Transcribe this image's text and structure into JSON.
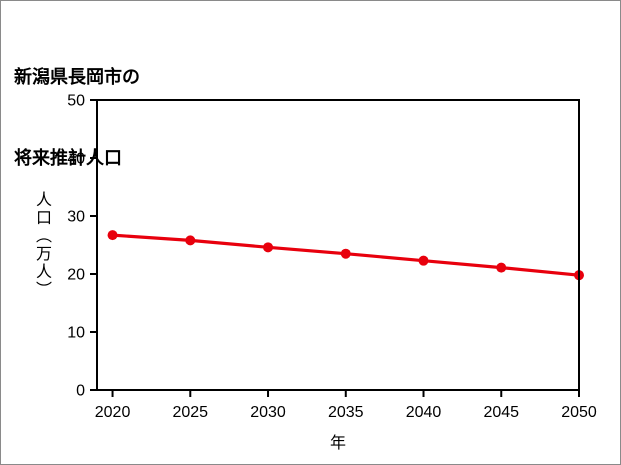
{
  "title": {
    "line1": "新潟県長岡市の",
    "line2": "将来推計人口"
  },
  "chart_data": {
    "type": "line",
    "title": "新潟県長岡市の将来推計人口",
    "xlabel": "年",
    "ylabel": "人口（万人）",
    "x": [
      2020,
      2025,
      2030,
      2035,
      2040,
      2045,
      2050
    ],
    "values": [
      26.7,
      25.8,
      24.6,
      23.5,
      22.3,
      21.1,
      19.8
    ],
    "x_ticks": [
      2020,
      2025,
      2030,
      2035,
      2040,
      2045,
      2050
    ],
    "y_ticks": [
      0,
      10,
      20,
      30,
      40,
      50
    ],
    "xlim": [
      2019,
      2050
    ],
    "ylim": [
      0,
      50
    ],
    "grid": false,
    "legend": false,
    "line_color": "#e8000d",
    "axis_color": "#000000",
    "marker": "circle"
  }
}
